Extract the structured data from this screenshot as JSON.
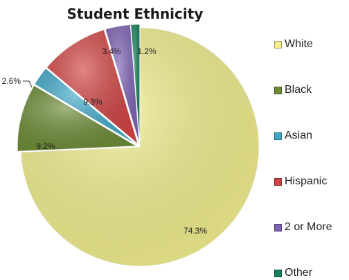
{
  "chart_data": {
    "type": "pie",
    "title": "Student Ethnicity",
    "categories": [
      "White",
      "Black",
      "Asian",
      "Hispanic",
      "2 or More",
      "Other"
    ],
    "values": [
      74.3,
      9.2,
      2.6,
      9.3,
      3.4,
      1.2
    ],
    "value_labels": [
      "74.3%",
      "9.2%",
      "2.6%",
      "9.3%",
      "3.4%",
      "1.2%"
    ],
    "colors": [
      "#f3ef8e",
      "#6d8c36",
      "#3fa9c9",
      "#d24444",
      "#7e62b4",
      "#17805c"
    ],
    "legend_position": "right"
  }
}
